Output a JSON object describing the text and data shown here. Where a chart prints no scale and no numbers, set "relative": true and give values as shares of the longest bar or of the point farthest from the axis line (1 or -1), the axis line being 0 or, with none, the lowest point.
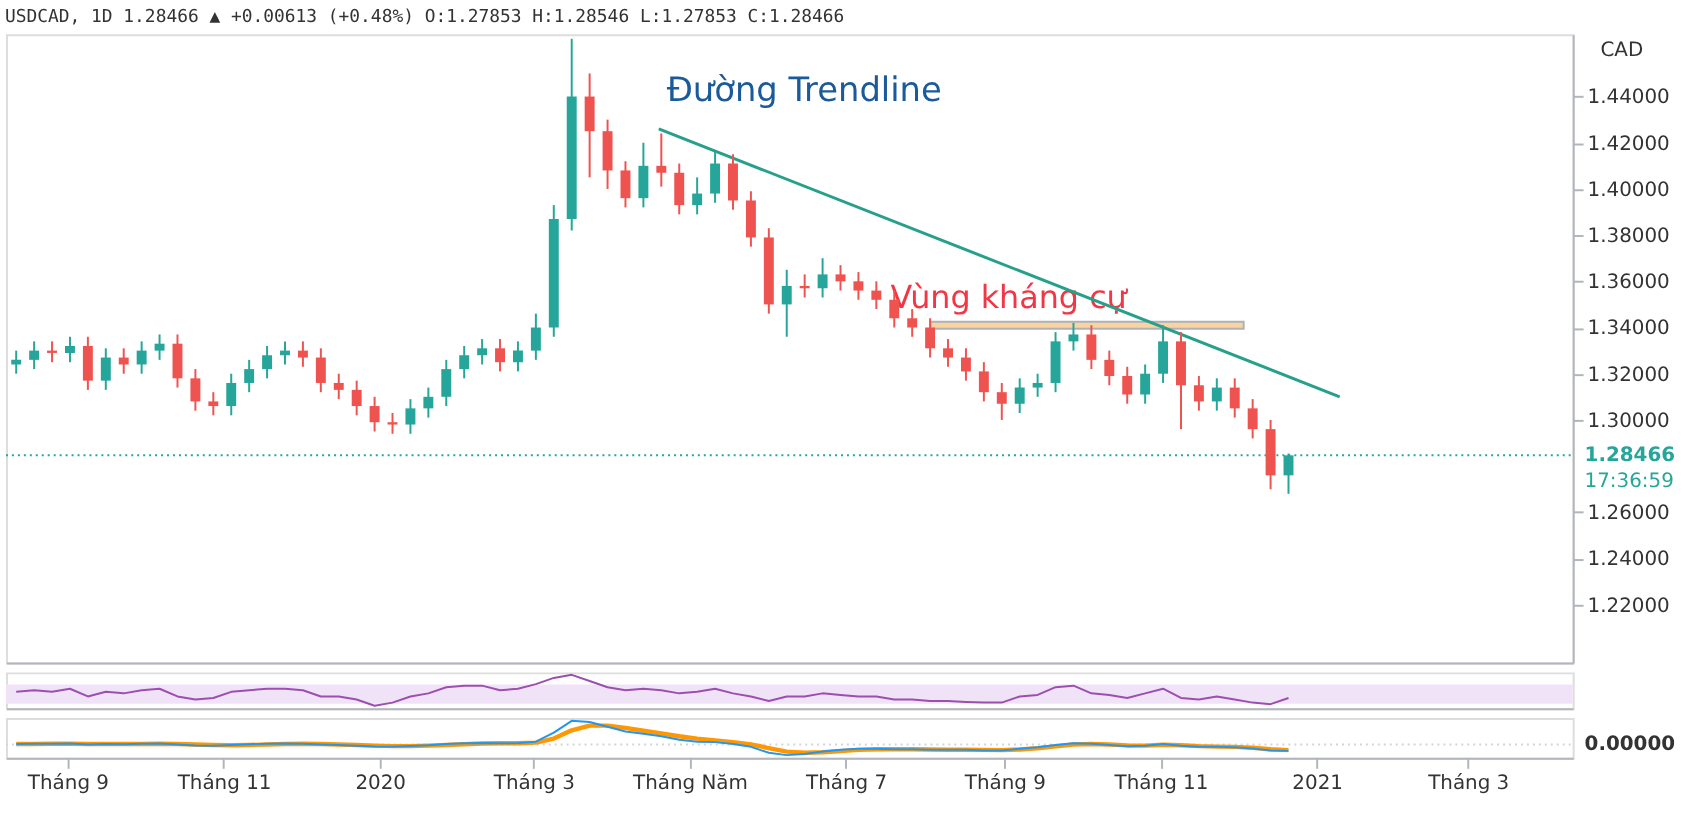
{
  "chart_data": [
    {
      "type": "candlestick",
      "title": "USDCAD, 1D 1.28466 ▲ +0.00613 (+0.48%) O:1.27853 H:1.28546 L:1.27853 C:1.28466",
      "ylabel": "CAD",
      "tick_labels": "y",
      "colors": [
        "#26a69a",
        "#26a69a",
        "#ef5350",
        "#26a69a",
        "#ef5350",
        "#26a69a",
        "#ef5350",
        "#26a69a",
        "#26a69a",
        "#ef5350",
        "#ef5350",
        "#ef5350",
        "#26a69a",
        "#26a69a",
        "#26a69a",
        "#26a69a",
        "#ef5350",
        "#ef5350",
        "#ef5350",
        "#ef5350",
        "#ef5350",
        "#ef5350",
        "#26a69a",
        "#26a69a",
        "#26a69a",
        "#26a69a",
        "#26a69a",
        "#ef5350",
        "#26a69a",
        "#26a69a",
        "#26a69a",
        "#26a69a",
        "#ef5350",
        "#ef5350",
        "#ef5350",
        "#26a69a",
        "#ef5350",
        "#ef5350",
        "#26a69a",
        "#26a69a",
        "#ef5350",
        "#ef5350",
        "#ef5350",
        "#26a69a",
        "#ef5350",
        "#26a69a",
        "#ef5350",
        "#ef5350",
        "#ef5350",
        "#ef5350",
        "#ef5350",
        "#ef5350",
        "#ef5350",
        "#ef5350",
        "#ef5350",
        "#ef5350",
        "#26a69a",
        "#26a69a",
        "#26a69a",
        "#26a69a",
        "#ef5350",
        "#ef5350",
        "#ef5350",
        "#26a69a",
        "#26a69a",
        "#ef5350",
        "#ef5350",
        "#26a69a",
        "#ef5350",
        "#ef5350",
        "#ef5350",
        "#26a69a"
      ],
      "x": [
        "2019-08-12",
        "2019-08-19",
        "2019-08-26",
        "2019-09-02",
        "2019-09-09",
        "2019-09-16",
        "2019-09-23",
        "2019-09-30",
        "2019-10-07",
        "2019-10-14",
        "2019-10-21",
        "2019-10-28",
        "2019-11-04",
        "2019-11-11",
        "2019-11-18",
        "2019-11-25",
        "2019-12-02",
        "2019-12-09",
        "2019-12-16",
        "2019-12-23",
        "2019-12-30",
        "2020-01-06",
        "2020-01-13",
        "2020-01-20",
        "2020-01-27",
        "2020-02-03",
        "2020-02-10",
        "2020-02-17",
        "2020-02-24",
        "2020-03-02",
        "2020-03-09",
        "2020-03-16",
        "2020-03-23",
        "2020-03-30",
        "2020-04-06",
        "2020-04-13",
        "2020-04-20",
        "2020-04-27",
        "2020-05-04",
        "2020-05-11",
        "2020-05-18",
        "2020-05-25",
        "2020-06-01",
        "2020-06-08",
        "2020-06-15",
        "2020-06-22",
        "2020-06-29",
        "2020-07-06",
        "2020-07-13",
        "2020-07-20",
        "2020-07-27",
        "2020-08-03",
        "2020-08-10",
        "2020-08-17",
        "2020-08-24",
        "2020-08-31",
        "2020-09-07",
        "2020-09-14",
        "2020-09-21",
        "2020-09-28",
        "2020-10-05",
        "2020-10-12",
        "2020-10-19",
        "2020-10-26",
        "2020-11-02",
        "2020-11-09",
        "2020-11-16",
        "2020-11-23",
        "2020-11-30",
        "2020-12-07",
        "2020-12-14",
        "2020-12-21"
      ],
      "ohlc": [
        [
          1.324,
          1.33,
          1.32,
          1.326
        ],
        [
          1.326,
          1.334,
          1.322,
          1.33
        ],
        [
          1.33,
          1.334,
          1.325,
          1.329
        ],
        [
          1.329,
          1.336,
          1.325,
          1.332
        ],
        [
          1.332,
          1.336,
          1.313,
          1.317
        ],
        [
          1.317,
          1.331,
          1.313,
          1.327
        ],
        [
          1.327,
          1.331,
          1.32,
          1.324
        ],
        [
          1.324,
          1.334,
          1.32,
          1.33
        ],
        [
          1.33,
          1.337,
          1.326,
          1.333
        ],
        [
          1.333,
          1.337,
          1.314,
          1.318
        ],
        [
          1.318,
          1.322,
          1.304,
          1.308
        ],
        [
          1.308,
          1.312,
          1.302,
          1.306
        ],
        [
          1.306,
          1.32,
          1.302,
          1.316
        ],
        [
          1.316,
          1.326,
          1.312,
          1.322
        ],
        [
          1.322,
          1.332,
          1.318,
          1.328
        ],
        [
          1.328,
          1.334,
          1.324,
          1.33
        ],
        [
          1.33,
          1.334,
          1.323,
          1.327
        ],
        [
          1.327,
          1.331,
          1.312,
          1.316
        ],
        [
          1.316,
          1.32,
          1.309,
          1.313
        ],
        [
          1.313,
          1.317,
          1.302,
          1.306
        ],
        [
          1.306,
          1.31,
          1.295,
          1.299
        ],
        [
          1.299,
          1.303,
          1.294,
          1.298
        ],
        [
          1.298,
          1.309,
          1.294,
          1.305
        ],
        [
          1.305,
          1.314,
          1.301,
          1.31
        ],
        [
          1.31,
          1.326,
          1.306,
          1.322
        ],
        [
          1.322,
          1.332,
          1.318,
          1.328
        ],
        [
          1.328,
          1.335,
          1.324,
          1.331
        ],
        [
          1.331,
          1.335,
          1.321,
          1.325
        ],
        [
          1.325,
          1.334,
          1.321,
          1.33
        ],
        [
          1.33,
          1.346,
          1.326,
          1.34
        ],
        [
          1.34,
          1.393,
          1.336,
          1.387
        ],
        [
          1.387,
          1.465,
          1.382,
          1.44
        ],
        [
          1.44,
          1.45,
          1.405,
          1.425
        ],
        [
          1.425,
          1.43,
          1.4,
          1.408
        ],
        [
          1.408,
          1.412,
          1.392,
          1.396
        ],
        [
          1.396,
          1.42,
          1.392,
          1.41
        ],
        [
          1.41,
          1.424,
          1.401,
          1.407
        ],
        [
          1.407,
          1.411,
          1.389,
          1.393
        ],
        [
          1.393,
          1.405,
          1.389,
          1.398
        ],
        [
          1.398,
          1.416,
          1.394,
          1.411
        ],
        [
          1.411,
          1.415,
          1.391,
          1.395
        ],
        [
          1.395,
          1.399,
          1.375,
          1.379
        ],
        [
          1.379,
          1.383,
          1.346,
          1.35
        ],
        [
          1.35,
          1.365,
          1.336,
          1.358
        ],
        [
          1.358,
          1.363,
          1.353,
          1.357
        ],
        [
          1.357,
          1.37,
          1.353,
          1.363
        ],
        [
          1.363,
          1.367,
          1.356,
          1.36
        ],
        [
          1.36,
          1.364,
          1.352,
          1.356
        ],
        [
          1.356,
          1.36,
          1.348,
          1.352
        ],
        [
          1.352,
          1.356,
          1.34,
          1.344
        ],
        [
          1.344,
          1.348,
          1.336,
          1.34
        ],
        [
          1.34,
          1.344,
          1.327,
          1.331
        ],
        [
          1.331,
          1.335,
          1.323,
          1.327
        ],
        [
          1.327,
          1.331,
          1.317,
          1.321
        ],
        [
          1.321,
          1.325,
          1.308,
          1.312
        ],
        [
          1.312,
          1.316,
          1.3,
          1.307
        ],
        [
          1.307,
          1.318,
          1.303,
          1.314
        ],
        [
          1.314,
          1.32,
          1.31,
          1.316
        ],
        [
          1.316,
          1.338,
          1.312,
          1.334
        ],
        [
          1.334,
          1.342,
          1.33,
          1.337
        ],
        [
          1.337,
          1.341,
          1.322,
          1.326
        ],
        [
          1.326,
          1.33,
          1.315,
          1.319
        ],
        [
          1.319,
          1.323,
          1.307,
          1.311
        ],
        [
          1.311,
          1.324,
          1.307,
          1.32
        ],
        [
          1.32,
          1.341,
          1.316,
          1.334
        ],
        [
          1.334,
          1.338,
          1.296,
          1.315
        ],
        [
          1.315,
          1.319,
          1.304,
          1.308
        ],
        [
          1.308,
          1.318,
          1.304,
          1.314
        ],
        [
          1.314,
          1.318,
          1.301,
          1.305
        ],
        [
          1.305,
          1.309,
          1.292,
          1.296
        ],
        [
          1.296,
          1.3,
          1.27,
          1.276
        ],
        [
          1.276,
          1.28546,
          1.268,
          1.28466
        ]
      ],
      "series": [
        {
          "type": "line",
          "color": "#26a08a",
          "x": [
            "2020-04-19",
            "2021-01-10"
          ],
          "values": [
            1.426,
            1.31
          ]
        }
      ],
      "bands": [
        {
          "axis": "y",
          "from": 1.3395,
          "to": 1.3425,
          "label": "Vùng kháng cự",
          "color": "#f9c98a"
        }
      ],
      "ref_lines": [
        {
          "axis": "y",
          "value": 1.28466,
          "label": "1.28466",
          "color": "#26a69a",
          "line_style": "dotted"
        }
      ],
      "annotations": [
        "Đường Trendline",
        "17:36:59"
      ],
      "xlim": [
        "2019-08-08",
        "2021-04-11"
      ],
      "ylim": [
        1.195,
        1.467
      ],
      "yticks": [
        {
          "value": 1.22,
          "label": "1.22000"
        },
        {
          "value": 1.24,
          "label": "1.24000"
        },
        {
          "value": 1.26,
          "label": "1.26000"
        },
        {
          "value": 1.3,
          "label": "1.30000"
        },
        {
          "value": 1.32,
          "label": "1.32000"
        },
        {
          "value": 1.34,
          "label": "1.34000"
        },
        {
          "value": 1.36,
          "label": "1.36000"
        },
        {
          "value": 1.38,
          "label": "1.38000"
        },
        {
          "value": 1.4,
          "label": "1.40000"
        },
        {
          "value": 1.42,
          "label": "1.42000"
        },
        {
          "value": 1.44,
          "label": "1.44000"
        }
      ]
    },
    {
      "type": "line",
      "relative": true,
      "tick_labels": false,
      "x": [
        "2019-08-12",
        "2019-08-19",
        "2019-08-26",
        "2019-09-02",
        "2019-09-09",
        "2019-09-16",
        "2019-09-23",
        "2019-09-30",
        "2019-10-07",
        "2019-10-14",
        "2019-10-21",
        "2019-10-28",
        "2019-11-04",
        "2019-11-11",
        "2019-11-18",
        "2019-11-25",
        "2019-12-02",
        "2019-12-09",
        "2019-12-16",
        "2019-12-23",
        "2019-12-30",
        "2020-01-06",
        "2020-01-13",
        "2020-01-20",
        "2020-01-27",
        "2020-02-03",
        "2020-02-10",
        "2020-02-17",
        "2020-02-24",
        "2020-03-02",
        "2020-03-09",
        "2020-03-16",
        "2020-03-23",
        "2020-03-30",
        "2020-04-06",
        "2020-04-13",
        "2020-04-20",
        "2020-04-27",
        "2020-05-04",
        "2020-05-11",
        "2020-05-18",
        "2020-05-25",
        "2020-06-01",
        "2020-06-08",
        "2020-06-15",
        "2020-06-22",
        "2020-06-29",
        "2020-07-06",
        "2020-07-13",
        "2020-07-20",
        "2020-07-27",
        "2020-08-03",
        "2020-08-10",
        "2020-08-17",
        "2020-08-24",
        "2020-08-31",
        "2020-09-07",
        "2020-09-14",
        "2020-09-21",
        "2020-09-28",
        "2020-10-05",
        "2020-10-12",
        "2020-10-19",
        "2020-10-26",
        "2020-11-02",
        "2020-11-09",
        "2020-11-16",
        "2020-11-23",
        "2020-11-30",
        "2020-12-07",
        "2020-12-14",
        "2020-12-21"
      ],
      "series": [
        {
          "color": "#9c4fb0",
          "values": [
            0.45,
            0.5,
            0.45,
            0.55,
            0.3,
            0.45,
            0.4,
            0.5,
            0.55,
            0.3,
            0.2,
            0.25,
            0.45,
            0.5,
            0.55,
            0.55,
            0.5,
            0.3,
            0.3,
            0.2,
            0,
            0.1,
            0.3,
            0.4,
            0.6,
            0.65,
            0.65,
            0.5,
            0.55,
            0.7,
            0.9,
            1,
            0.8,
            0.6,
            0.5,
            0.55,
            0.5,
            0.4,
            0.45,
            0.55,
            0.4,
            0.3,
            0.15,
            0.3,
            0.3,
            0.4,
            0.35,
            0.3,
            0.3,
            0.2,
            0.2,
            0.15,
            0.15,
            0.12,
            0.1,
            0.1,
            0.3,
            0.35,
            0.6,
            0.65,
            0.4,
            0.35,
            0.25,
            0.4,
            0.55,
            0.25,
            0.2,
            0.3,
            0.2,
            0.1,
            0.05,
            0.25
          ]
        }
      ],
      "bands": [
        {
          "axis": "y",
          "from": 0.06,
          "to": 0.69,
          "color": "#f1e3f7"
        }
      ],
      "xlim": [
        "2019-08-08",
        "2021-04-11"
      ]
    },
    {
      "type": "line",
      "relative": true,
      "tick_labels": "x",
      "x": [
        "2019-08-12",
        "2019-08-19",
        "2019-08-26",
        "2019-09-02",
        "2019-09-09",
        "2019-09-16",
        "2019-09-23",
        "2019-09-30",
        "2019-10-07",
        "2019-10-14",
        "2019-10-21",
        "2019-10-28",
        "2019-11-04",
        "2019-11-11",
        "2019-11-18",
        "2019-11-25",
        "2019-12-02",
        "2019-12-09",
        "2019-12-16",
        "2019-12-23",
        "2019-12-30",
        "2020-01-06",
        "2020-01-13",
        "2020-01-20",
        "2020-01-27",
        "2020-02-03",
        "2020-02-10",
        "2020-02-17",
        "2020-02-24",
        "2020-03-02",
        "2020-03-09",
        "2020-03-16",
        "2020-03-23",
        "2020-03-30",
        "2020-04-06",
        "2020-04-13",
        "2020-04-20",
        "2020-04-27",
        "2020-05-04",
        "2020-05-11",
        "2020-05-18",
        "2020-05-25",
        "2020-06-01",
        "2020-06-08",
        "2020-06-15",
        "2020-06-22",
        "2020-06-29",
        "2020-07-06",
        "2020-07-13",
        "2020-07-20",
        "2020-07-27",
        "2020-08-03",
        "2020-08-10",
        "2020-08-17",
        "2020-08-24",
        "2020-08-31",
        "2020-09-07",
        "2020-09-14",
        "2020-09-21",
        "2020-09-28",
        "2020-10-05",
        "2020-10-12",
        "2020-10-19",
        "2020-10-26",
        "2020-11-02",
        "2020-11-09",
        "2020-11-16",
        "2020-11-23",
        "2020-11-30",
        "2020-12-07",
        "2020-12-14",
        "2020-12-21"
      ],
      "series": [
        {
          "color": "#2196f3",
          "values": [
            0.02,
            0.03,
            0.03,
            0.04,
            0,
            0.02,
            0.01,
            0.03,
            0.04,
            0,
            -0.04,
            -0.05,
            -0.02,
            0.01,
            0.03,
            0.04,
            0.03,
            0,
            -0.02,
            -0.05,
            -0.08,
            -0.09,
            -0.06,
            -0.03,
            0.02,
            0.05,
            0.06,
            0.05,
            0.06,
            0.12,
            0.5,
            1,
            0.95,
            0.75,
            0.55,
            0.45,
            0.35,
            0.2,
            0.12,
            0.1,
            0.02,
            -0.1,
            -0.35,
            -0.45,
            -0.4,
            -0.3,
            -0.22,
            -0.18,
            -0.18,
            -0.2,
            -0.2,
            -0.22,
            -0.22,
            -0.22,
            -0.25,
            -0.25,
            -0.18,
            -0.12,
            -0.02,
            0.05,
            0.03,
            -0.02,
            -0.07,
            -0.05,
            0.02,
            -0.05,
            -0.1,
            -0.1,
            -0.12,
            -0.17,
            -0.25,
            -0.27
          ]
        },
        {
          "color": "#ff9800",
          "values": [
            0.02,
            0.02,
            0.03,
            0.03,
            0.02,
            0.02,
            0.02,
            0.02,
            0.03,
            0.02,
            0,
            -0.02,
            -0.03,
            -0.02,
            0,
            0.02,
            0.03,
            0.02,
            0,
            -0.02,
            -0.05,
            -0.07,
            -0.07,
            -0.05,
            -0.02,
            0.01,
            0.04,
            0.05,
            0.05,
            0.08,
            0.25,
            0.6,
            0.8,
            0.8,
            0.7,
            0.58,
            0.47,
            0.35,
            0.25,
            0.17,
            0.1,
            0,
            -0.15,
            -0.3,
            -0.35,
            -0.33,
            -0.28,
            -0.23,
            -0.2,
            -0.2,
            -0.2,
            -0.21,
            -0.22,
            -0.22,
            -0.23,
            -0.24,
            -0.21,
            -0.16,
            -0.08,
            0,
            0.02,
            0,
            -0.04,
            -0.05,
            -0.01,
            -0.03,
            -0.07,
            -0.09,
            -0.1,
            -0.14,
            -0.2,
            -0.24
          ]
        }
      ],
      "ref_lines": [
        {
          "axis": "y",
          "value": 0,
          "label": "0.00000",
          "color": "#d1d4dc",
          "line_style": "dotted"
        }
      ],
      "xlim": [
        "2019-08-08",
        "2021-04-11"
      ],
      "xticks": [
        {
          "value": "2019-09-01",
          "label": "Tháng 9"
        },
        {
          "value": "2019-11-01",
          "label": "Tháng 11"
        },
        {
          "value": "2020-01-01",
          "label": "2020"
        },
        {
          "value": "2020-03-01",
          "label": "Tháng 3"
        },
        {
          "value": "2020-05-01",
          "label": "Tháng Năm"
        },
        {
          "value": "2020-07-01",
          "label": "Tháng 7"
        },
        {
          "value": "2020-09-01",
          "label": "Tháng 9"
        },
        {
          "value": "2020-11-01",
          "label": "Tháng 11"
        },
        {
          "value": "2021-01-01",
          "label": "2021"
        },
        {
          "value": "2021-03-01",
          "label": "Tháng 3"
        }
      ]
    }
  ]
}
